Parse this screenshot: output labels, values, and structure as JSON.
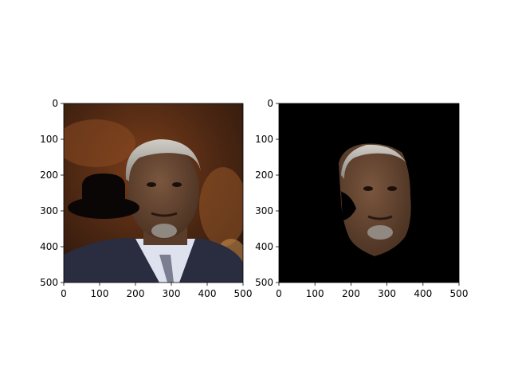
{
  "chart_data": [
    {
      "type": "image",
      "xlim": [
        0,
        500
      ],
      "ylim": [
        500,
        0
      ],
      "xticks": [
        0,
        100,
        200,
        300,
        400,
        500
      ],
      "yticks": [
        0,
        100,
        200,
        300,
        400,
        500
      ],
      "xtick_labels": [
        "0",
        "100",
        "200",
        "300",
        "400",
        "500"
      ],
      "ytick_labels": [
        "0",
        "100",
        "200",
        "300",
        "400",
        "500"
      ],
      "content": "photo of an older man in a suit with a black bowler-hat shaped mask overlay",
      "colors": {
        "background_dark": "#3a2010",
        "background_light": "#8a4a22",
        "hat": "#0a0606",
        "suit": "#2a2c40",
        "shirt": "#dde2ee",
        "hair": "#b8b4ae",
        "skin": "#6a4a36"
      }
    },
    {
      "type": "image",
      "xlim": [
        0,
        500
      ],
      "ylim": [
        500,
        0
      ],
      "xticks": [
        0,
        100,
        200,
        300,
        400,
        500
      ],
      "yticks": [
        0,
        100,
        200,
        300,
        400,
        500
      ],
      "xtick_labels": [
        "0",
        "100",
        "200",
        "300",
        "400",
        "500"
      ],
      "ytick_labels": [
        "0",
        "100",
        "200",
        "300",
        "400",
        "500"
      ],
      "content": "segmented face on black background",
      "colors": {
        "background": "#000000",
        "hair": "#b8b4ae",
        "skin": "#6a4a36"
      }
    }
  ]
}
